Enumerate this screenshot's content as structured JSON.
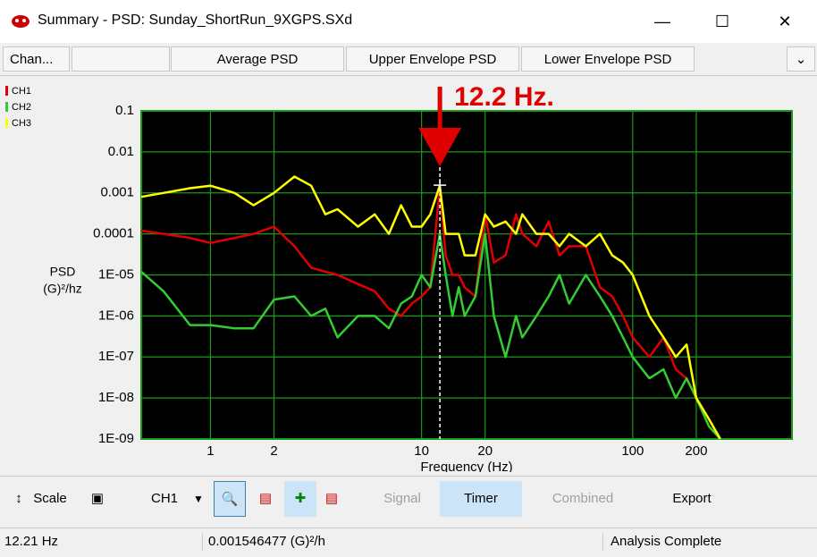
{
  "window": {
    "title": "Summary - PSD: Sunday_ShortRun_9XGPS.SXd"
  },
  "tabs": [
    "Chan...",
    "Average PSD",
    "Upper Envelope PSD",
    "Lower Envelope PSD"
  ],
  "toolbar": {
    "scale": "Scale",
    "channel": "CH1",
    "signal": "Signal",
    "timer": "Timer",
    "combined": "Combined",
    "export": "Export"
  },
  "status": {
    "state": "Analysis Complete"
  },
  "chart_data": {
    "type": "line",
    "xlabel": "Frequency (Hz)",
    "ylabel": [
      "PSD",
      "(G)²/hz"
    ],
    "annotation": "12.2 Hz.",
    "xscale": "log",
    "yscale": "log",
    "grid": true,
    "xlim": [
      0.47,
      568
    ],
    "ylim": [
      1e-09,
      0.1
    ],
    "xticks": [
      1,
      2,
      10,
      20,
      100,
      200
    ],
    "yticks": [
      0.1,
      0.01,
      0.001,
      0.0001,
      {
        "value": 1e-05,
        "label": "1E-05"
      },
      {
        "value": 1e-06,
        "label": "1E-06"
      },
      {
        "value": 1e-07,
        "label": "1E-07"
      },
      {
        "value": 1e-08,
        "label": "1E-08"
      },
      {
        "value": 1e-09,
        "label": "1E-09"
      }
    ],
    "cursor": {
      "x": {
        "value": 12.21,
        "label": "12.21 Hz"
      },
      "y": {
        "value": 0.001546477,
        "label": "0.001546477 (G)²/h"
      }
    },
    "x": [
      0.47,
      0.6,
      0.8,
      1,
      1.3,
      1.6,
      2,
      2.5,
      3,
      3.5,
      4,
      5,
      6,
      7,
      8,
      9,
      10,
      11,
      12.2,
      13,
      14,
      15,
      16,
      18,
      20,
      22,
      25,
      28,
      30,
      35,
      40,
      45,
      50,
      60,
      70,
      80,
      90,
      100,
      120,
      140,
      160,
      180,
      200,
      230,
      260
    ],
    "series": [
      {
        "name": "CH1",
        "color": "#e00000",
        "values": [
          0.00012,
          0.0001,
          8e-05,
          6e-05,
          8e-05,
          0.0001,
          0.00015,
          5e-05,
          1.5e-05,
          1.2e-05,
          1e-05,
          6e-06,
          4e-06,
          1.5e-06,
          1e-06,
          2e-06,
          3e-06,
          5e-06,
          0.0014,
          3e-05,
          1e-05,
          1e-05,
          5e-06,
          3e-06,
          0.0003,
          2e-05,
          3e-05,
          0.0003,
          0.0001,
          5e-05,
          0.0002,
          3e-05,
          5e-05,
          5e-05,
          5e-06,
          3e-06,
          1e-06,
          3e-07,
          1e-07,
          3e-07,
          5e-08,
          3e-08,
          1e-08,
          3e-09,
          1e-09
        ]
      },
      {
        "name": "CH2",
        "color": "#33cc33",
        "values": [
          1.2e-05,
          4e-06,
          6e-07,
          6e-07,
          5e-07,
          5e-07,
          2.5e-06,
          3e-06,
          1e-06,
          1.5e-06,
          3e-07,
          1e-06,
          1e-06,
          5e-07,
          2e-06,
          3e-06,
          1e-05,
          5e-06,
          0.0001,
          1e-05,
          1e-06,
          5e-06,
          1e-06,
          3e-06,
          0.0001,
          1e-06,
          1e-07,
          1e-06,
          3e-07,
          1e-06,
          3e-06,
          1e-05,
          2e-06,
          1e-05,
          3e-06,
          1e-06,
          3e-07,
          1e-07,
          3e-08,
          5e-08,
          1e-08,
          3e-08,
          1e-08,
          2e-09,
          1e-09
        ]
      },
      {
        "name": "CH3",
        "color": "#ffff00",
        "values": [
          0.0008,
          0.001,
          0.0013,
          0.0015,
          0.001,
          0.0005,
          0.001,
          0.0025,
          0.0015,
          0.0003,
          0.0004,
          0.00015,
          0.0003,
          0.0001,
          0.0005,
          0.00015,
          0.00015,
          0.0003,
          0.0015,
          0.0001,
          0.0001,
          0.0001,
          3e-05,
          3e-05,
          0.0003,
          0.00015,
          0.0002,
          0.0001,
          0.0003,
          0.0001,
          0.0001,
          5e-05,
          0.0001,
          5e-05,
          0.0001,
          3e-05,
          2e-05,
          1e-05,
          1e-06,
          3e-07,
          1e-07,
          2e-07,
          1e-08,
          3e-09,
          1e-09
        ]
      }
    ]
  }
}
